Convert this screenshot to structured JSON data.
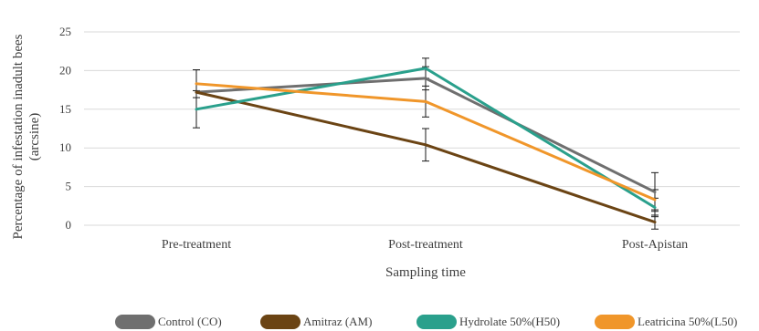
{
  "chart_data": {
    "type": "line",
    "title": "",
    "xlabel": "Sampling time",
    "ylabel_line1": "Percentage of infestation inadult bees",
    "ylabel_line2": "(arcsine)",
    "categories": [
      "Pre-treatment",
      "Post-treatment",
      "Post-Apistan"
    ],
    "ylim": [
      0,
      25
    ],
    "yticks": [
      0,
      5,
      10,
      15,
      20,
      25
    ],
    "grid": true,
    "legend_position": "bottom",
    "series": [
      {
        "name": "Control (CO)",
        "color": "#6f6f6f",
        "values": [
          17.2,
          19.0,
          4.3
        ],
        "errors": [
          0,
          1.5,
          2.5
        ]
      },
      {
        "name": "Amitraz (AM)",
        "color": "#6b4414",
        "values": [
          17.2,
          10.4,
          0.4
        ],
        "errors": [
          0,
          2.1,
          0.9
        ]
      },
      {
        "name": "Hydrolate 50%(H50)",
        "color": "#2aa08c",
        "values": [
          15.0,
          20.3,
          2.3
        ],
        "errors": [
          2.4,
          1.3,
          1.2
        ]
      },
      {
        "name": "Leatricina 50%(L50)",
        "color": "#f0962a",
        "values": [
          18.3,
          16.0,
          3.3
        ],
        "errors": [
          1.8,
          2.0,
          1.3
        ]
      }
    ]
  }
}
